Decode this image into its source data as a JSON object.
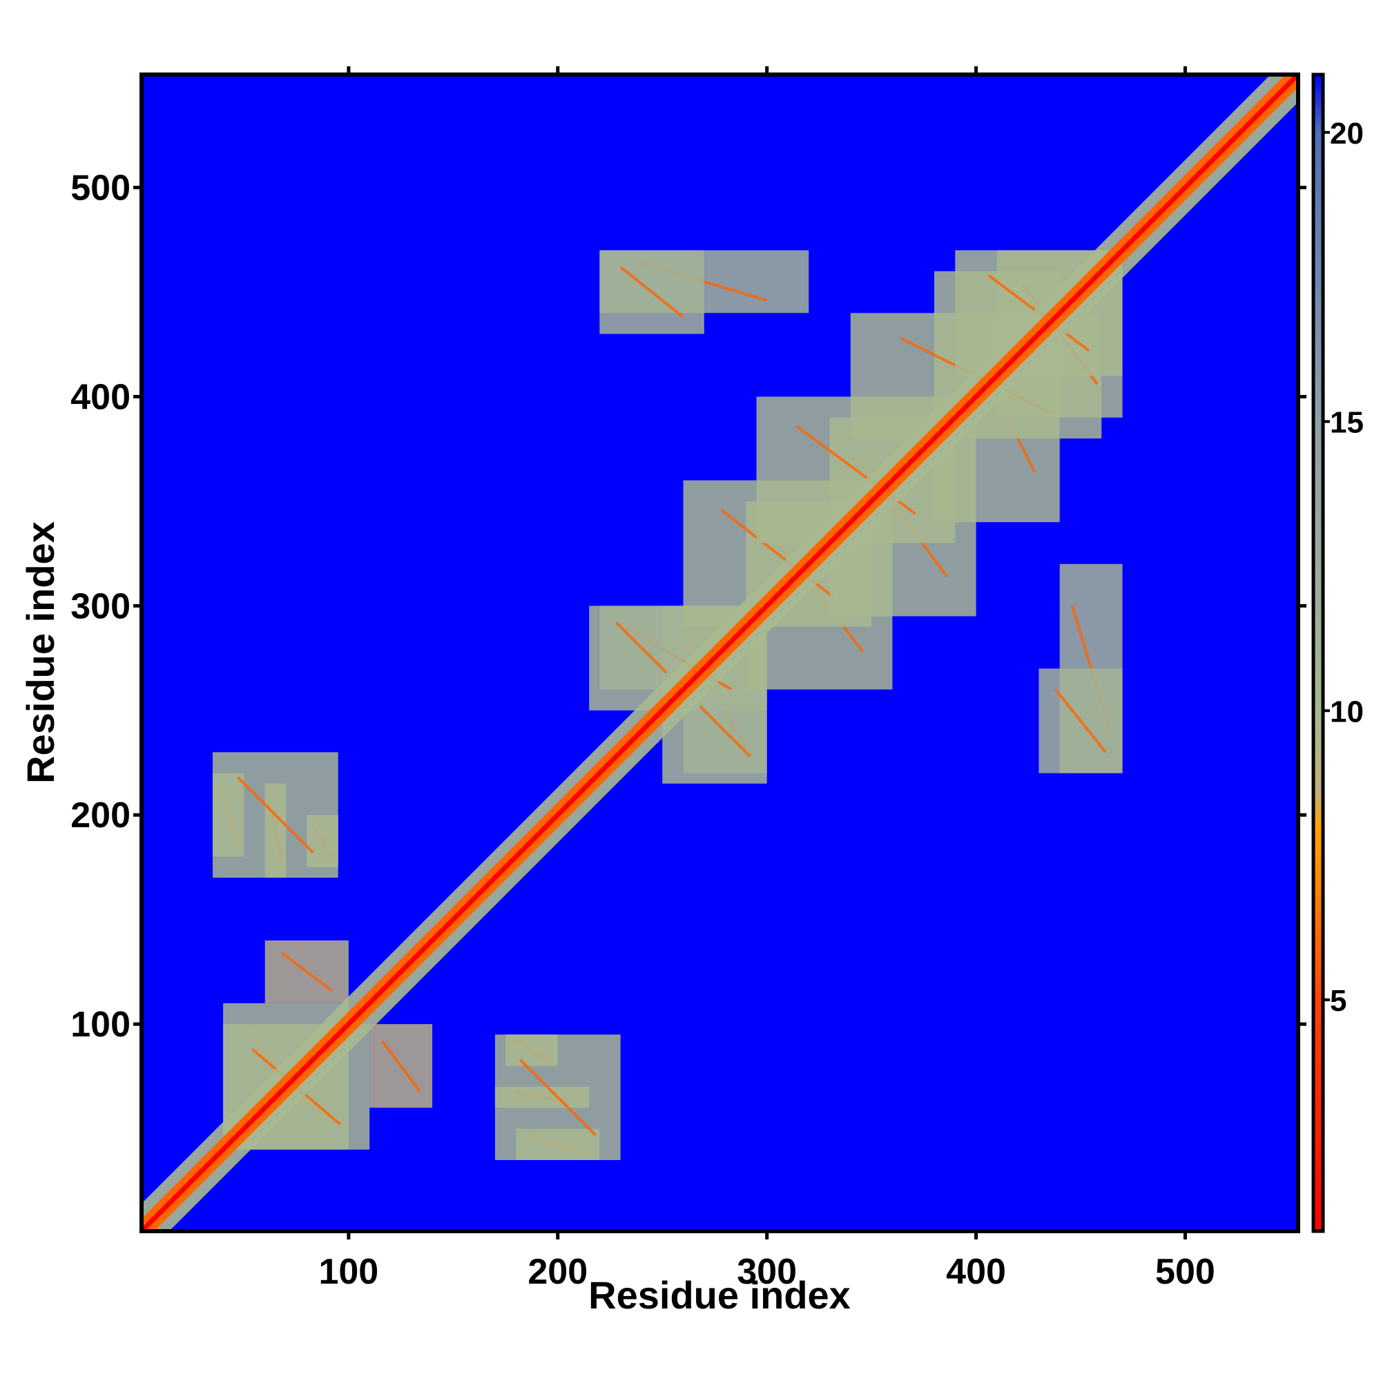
{
  "chart_data": {
    "type": "heatmap",
    "title": "",
    "xlabel": "Residue index",
    "ylabel": "Residue index",
    "xlim": [
      1,
      554
    ],
    "ylim": [
      1,
      554
    ],
    "xticks": [
      100,
      200,
      300,
      400,
      500
    ],
    "yticks": [
      100,
      200,
      300,
      400,
      500
    ],
    "colorbar": {
      "range": [
        1,
        21
      ],
      "ticks": [
        5,
        10,
        15,
        20
      ],
      "colors": [
        {
          "value": 1,
          "color": "#ff0000"
        },
        {
          "value": 5,
          "color": "#ff4500"
        },
        {
          "value": 8,
          "color": "#ffa500"
        },
        {
          "value": 8.6,
          "color": "#c0b080"
        },
        {
          "value": 10,
          "color": "#a8b890"
        },
        {
          "value": 15,
          "color": "#8fa0a8"
        },
        {
          "value": 20,
          "color": "#5070b8"
        },
        {
          "value": 21,
          "color": "#0000ff"
        }
      ]
    },
    "background_color": "#0000ff",
    "symmetric": true,
    "diagonal_band_halfwidth": 6,
    "contact_regions": [
      {
        "name": "block-A-1",
        "x_range": [
          60,
          70
        ],
        "y_range": [
          170,
          215
        ],
        "value": 9
      },
      {
        "name": "block-A-2",
        "x_range": [
          35,
          50
        ],
        "y_range": [
          180,
          220
        ],
        "value": 10
      },
      {
        "name": "block-A-3",
        "x_range": [
          80,
          95
        ],
        "y_range": [
          175,
          200
        ],
        "value": 9
      },
      {
        "name": "block-B-1",
        "x_range": [
          170,
          230
        ],
        "y_range": [
          35,
          95
        ],
        "value": 10
      },
      {
        "name": "block-C-1",
        "x_range": [
          40,
          100
        ],
        "y_range": [
          40,
          110
        ],
        "value": 10
      },
      {
        "name": "block-D-1",
        "x_range": [
          110,
          140
        ],
        "y_range": [
          60,
          100
        ],
        "value": 9
      },
      {
        "name": "block-E-1",
        "x_range": [
          250,
          300
        ],
        "y_range": [
          215,
          300
        ],
        "value": 10
      },
      {
        "name": "block-E-2",
        "x_range": [
          290,
          360
        ],
        "y_range": [
          260,
          350
        ],
        "value": 10
      },
      {
        "name": "block-E-3",
        "x_range": [
          330,
          400
        ],
        "y_range": [
          295,
          390
        ],
        "value": 10
      },
      {
        "name": "block-E-4",
        "x_range": [
          380,
          440
        ],
        "y_range": [
          340,
          460
        ],
        "value": 10
      },
      {
        "name": "block-F-1",
        "x_range": [
          440,
          470
        ],
        "y_range": [
          220,
          320
        ],
        "value": 11
      },
      {
        "name": "block-F-2",
        "x_range": [
          220,
          260
        ],
        "y_range": [
          260,
          300
        ],
        "value": 11
      },
      {
        "name": "block-G-1",
        "x_range": [
          220,
          270
        ],
        "y_range": [
          430,
          470
        ],
        "value": 11
      },
      {
        "name": "block-G-2",
        "x_range": [
          410,
          470
        ],
        "y_range": [
          390,
          470
        ],
        "value": 10
      }
    ]
  }
}
